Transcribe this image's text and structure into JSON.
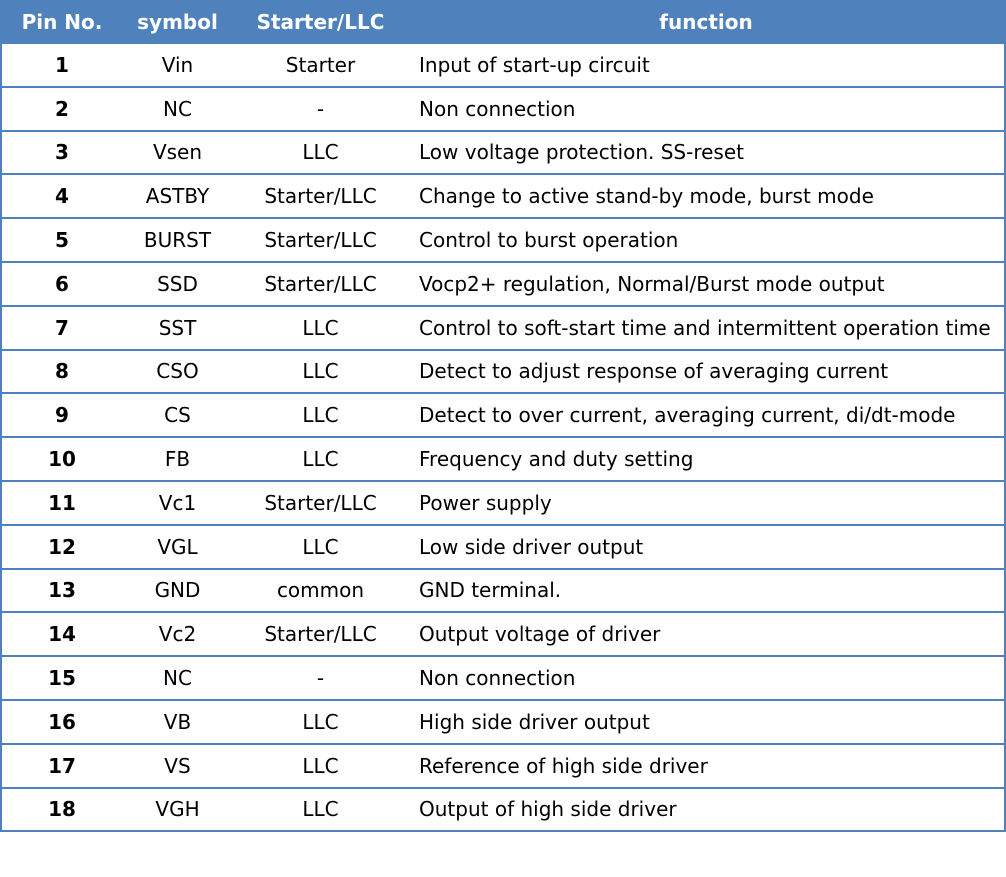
{
  "table": {
    "headers": {
      "pin": "Pin No.",
      "symbol": "symbol",
      "mode": "Starter/LLC",
      "function": "function"
    },
    "rows": [
      {
        "pin": "1",
        "symbol": "Vin",
        "mode": "Starter",
        "function": "Input of start-up circuit"
      },
      {
        "pin": "2",
        "symbol": "NC",
        "mode": "-",
        "function": "Non connection"
      },
      {
        "pin": "3",
        "symbol": "Vsen",
        "mode": "LLC",
        "function": "Low voltage protection. SS-reset"
      },
      {
        "pin": "4",
        "symbol": "ASTBY",
        "mode": "Starter/LLC",
        "function": "Change to active stand-by mode, burst mode"
      },
      {
        "pin": "5",
        "symbol": "BURST",
        "mode": "Starter/LLC",
        "function": "Control to burst operation"
      },
      {
        "pin": "6",
        "symbol": "SSD",
        "mode": "Starter/LLC",
        "function": "Vocp2+ regulation, Normal/Burst mode output"
      },
      {
        "pin": "7",
        "symbol": "SST",
        "mode": "LLC",
        "function": "Control to soft-start time and intermittent operation time"
      },
      {
        "pin": "8",
        "symbol": "CSO",
        "mode": "LLC",
        "function": "Detect to adjust response of averaging current"
      },
      {
        "pin": "9",
        "symbol": "CS",
        "mode": "LLC",
        "function": "Detect to over current, averaging current, di/dt-mode"
      },
      {
        "pin": "10",
        "symbol": "FB",
        "mode": "LLC",
        "function": "Frequency and duty setting"
      },
      {
        "pin": "11",
        "symbol": "Vc1",
        "mode": "Starter/LLC",
        "function": "Power supply"
      },
      {
        "pin": "12",
        "symbol": "VGL",
        "mode": "LLC",
        "function": "Low side driver output"
      },
      {
        "pin": "13",
        "symbol": "GND",
        "mode": "common",
        "function": "GND terminal."
      },
      {
        "pin": "14",
        "symbol": "Vc2",
        "mode": "Starter/LLC",
        "function": "Output voltage of driver"
      },
      {
        "pin": "15",
        "symbol": "NC",
        "mode": "-",
        "function": "Non connection"
      },
      {
        "pin": "16",
        "symbol": "VB",
        "mode": "LLC",
        "function": "High side driver output"
      },
      {
        "pin": "17",
        "symbol": "VS",
        "mode": "LLC",
        "function": "Reference of high side driver"
      },
      {
        "pin": "18",
        "symbol": "VGH",
        "mode": "LLC",
        "function": "Output of high side driver"
      }
    ]
  },
  "colors": {
    "header_bg": "#4f81bd",
    "line": "#4f81bd",
    "header_text": "#ffffff",
    "text": "#000000"
  }
}
